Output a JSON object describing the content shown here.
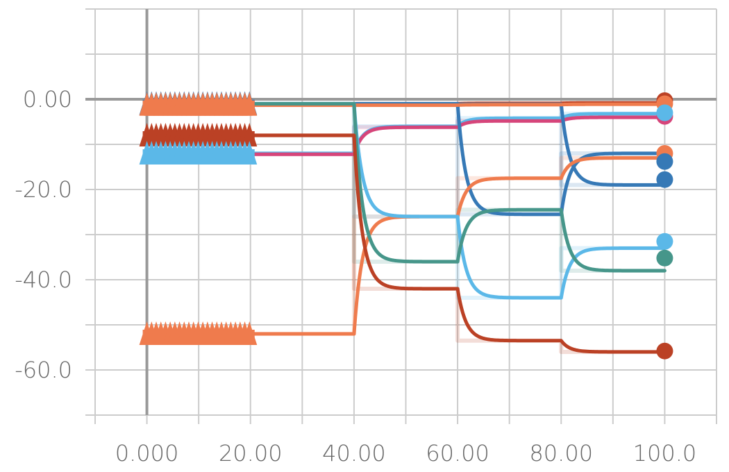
{
  "chart_data": {
    "type": "line",
    "title": "",
    "xlabel": "",
    "ylabel": "",
    "xlim": [
      -10,
      110
    ],
    "ylim": [
      -70,
      20
    ],
    "x_ticks": [
      0,
      20,
      40,
      60,
      80,
      100
    ],
    "x_tick_labels": [
      "0.000",
      "20.00",
      "40.00",
      "60.00",
      "80.00",
      "100.0"
    ],
    "y_ticks": [
      0,
      -20,
      -40,
      -60
    ],
    "y_tick_labels": [
      "0.00",
      "-20.0",
      "-40.0",
      "-60.0"
    ],
    "grid": true,
    "legend": "none",
    "series": [
      {
        "color": "#bb4125",
        "start": -1.2,
        "steps": [
          [
            40,
            -1.0
          ],
          [
            60,
            -0.9
          ],
          [
            80,
            -0.8
          ]
        ],
        "end_marker": "circle"
      },
      {
        "color": "#5bb8e8",
        "start": -12.0,
        "steps": [
          [
            40,
            -6.0
          ],
          [
            60,
            -4.2
          ],
          [
            80,
            -3.2
          ]
        ],
        "end_marker": "circle"
      },
      {
        "color": "#d6457a",
        "start": -12.2,
        "steps": [
          [
            40,
            -6.2
          ],
          [
            60,
            -4.8
          ],
          [
            80,
            -4.0
          ]
        ],
        "end_marker": "circle"
      },
      {
        "color": "#3679b6",
        "start": -1.0,
        "steps": [
          [
            40,
            -1.0
          ],
          [
            60,
            -25.5
          ],
          [
            80,
            -12.0
          ]
        ],
        "end_marker": "circle"
      },
      {
        "color": "#3679b6",
        "start": -1.1,
        "steps": [
          [
            40,
            -1.1
          ],
          [
            60,
            -1.1
          ],
          [
            80,
            -19.0
          ]
        ],
        "end_marker": "circle"
      },
      {
        "color": "#ef7b4d",
        "start": -52.0,
        "steps": [
          [
            40,
            -26.0
          ],
          [
            60,
            -17.5
          ],
          [
            80,
            -13.0
          ]
        ],
        "end_marker": "circle"
      },
      {
        "color": "#ef7b4d",
        "start": -1.3,
        "steps": [
          [
            40,
            -1.3
          ],
          [
            60,
            -1.2
          ],
          [
            80,
            -1.1
          ]
        ],
        "end_marker": "none"
      },
      {
        "color": "#5bb8e8",
        "start": -1.0,
        "steps": [
          [
            40,
            -26.0
          ],
          [
            60,
            -44.0
          ],
          [
            80,
            -33.0
          ]
        ],
        "end_marker": "circle"
      },
      {
        "color": "#46968a",
        "start": -1.0,
        "steps": [
          [
            40,
            -36.0
          ],
          [
            60,
            -24.5
          ],
          [
            80,
            -38.0
          ]
        ],
        "end_marker": "circle"
      },
      {
        "color": "#bb4125",
        "start": -8.0,
        "steps": [
          [
            40,
            -42.0
          ],
          [
            60,
            -53.5
          ],
          [
            80,
            -56.0
          ]
        ],
        "end_marker": "circle"
      }
    ],
    "start_marker_bands": [
      {
        "color": "#bb4125",
        "y": -8.0
      },
      {
        "color": "#5bb8e8",
        "y": -12.0
      },
      {
        "color": "#ef7b4d",
        "y": -52.0
      },
      {
        "color": "#3679b6",
        "y": -1.0
      },
      {
        "color": "#ef7b4d",
        "y": -1.2
      }
    ],
    "end_circles": [
      {
        "color": "#bb4125",
        "y": -0.3
      },
      {
        "color": "#ef7b4d",
        "y": -1.0
      },
      {
        "color": "#d6457a",
        "y": -3.8
      },
      {
        "color": "#5bb8e8",
        "y": -3.0
      },
      {
        "color": "#ef7b4d",
        "y": -12.0
      },
      {
        "color": "#3679b6",
        "y": -13.8
      },
      {
        "color": "#3679b6",
        "y": -17.8
      },
      {
        "color": "#5bb8e8",
        "y": -31.5
      },
      {
        "color": "#46968a",
        "y": -35.2
      },
      {
        "color": "#bb4125",
        "y": -55.8
      }
    ]
  }
}
